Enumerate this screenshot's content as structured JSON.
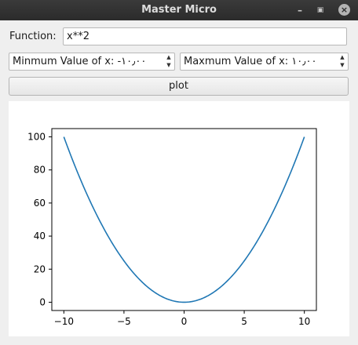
{
  "window": {
    "title": "Master Micro"
  },
  "function_field": {
    "label": "Function:",
    "value": "x**2"
  },
  "min_spin": {
    "text": "Minmum Value of x: -۱۰٫۰۰"
  },
  "max_spin": {
    "text": "Maxmum Value of x: ۱۰٫۰۰"
  },
  "plot_button": {
    "label": "plot"
  },
  "chart_data": {
    "type": "line",
    "title": "",
    "xlabel": "",
    "ylabel": "",
    "function": "x**2",
    "xlim": [
      -11,
      11
    ],
    "ylim": [
      -5,
      105
    ],
    "xticks": [
      -10,
      -5,
      0,
      5,
      10
    ],
    "yticks": [
      0,
      20,
      40,
      60,
      80,
      100
    ],
    "xtick_labels": [
      "−10",
      "−5",
      "0",
      "5",
      "10"
    ],
    "ytick_labels": [
      "0",
      "20",
      "40",
      "60",
      "80",
      "100"
    ],
    "series": [
      {
        "name": "x**2",
        "color": "#1f77b4",
        "x": [
          -10,
          -9,
          -8,
          -7,
          -6,
          -5,
          -4,
          -3,
          -2,
          -1,
          0,
          1,
          2,
          3,
          4,
          5,
          6,
          7,
          8,
          9,
          10
        ],
        "y": [
          100,
          81,
          64,
          49,
          36,
          25,
          16,
          9,
          4,
          1,
          0,
          1,
          4,
          9,
          16,
          25,
          36,
          49,
          64,
          81,
          100
        ]
      }
    ]
  }
}
